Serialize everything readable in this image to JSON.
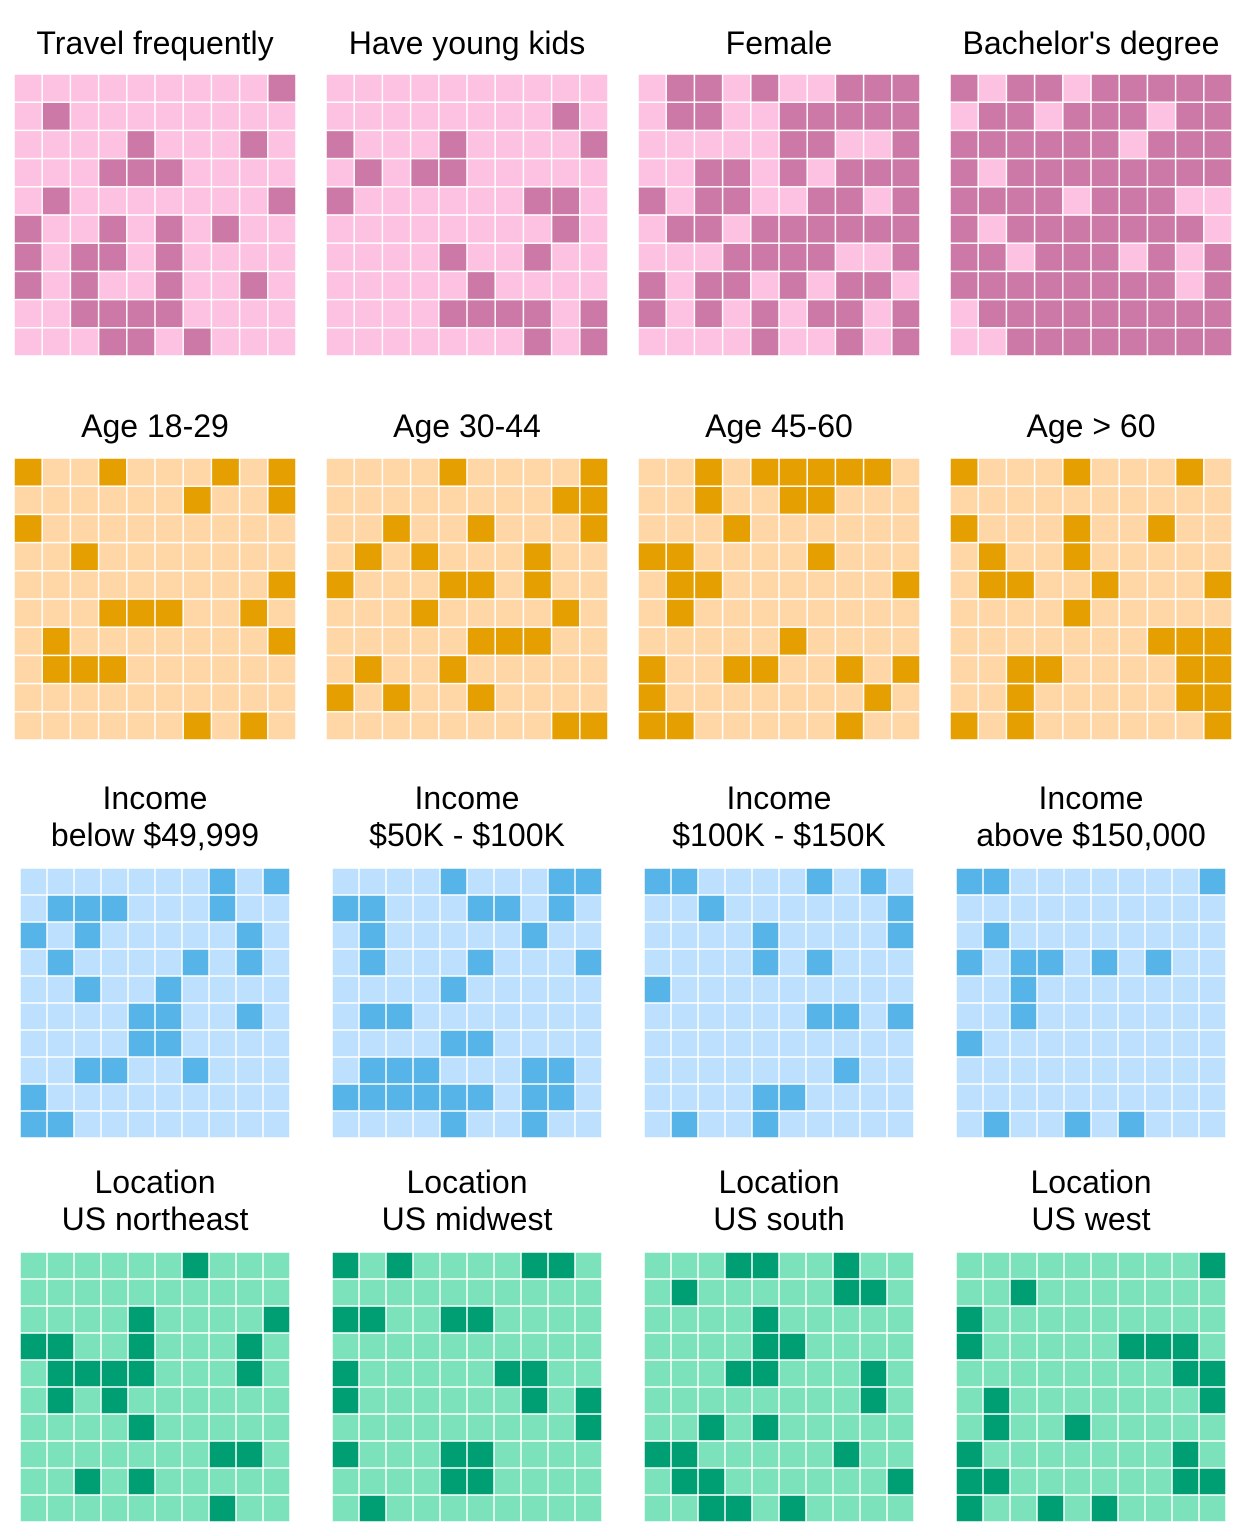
{
  "chart_data": {
    "type": "waffle",
    "grid": "10x10",
    "legend": "none",
    "panels": [
      {
        "title": [
          "Travel frequently"
        ],
        "light_color": "#FDC1E2",
        "dark_color": "#CC79A7",
        "cells": [
          "0000000001",
          "0100000000",
          "0000100010",
          "0001110000",
          "0100000001",
          "1001010100",
          "1011010000",
          "1010010010",
          "0011110000",
          "0001101000"
        ]
      },
      {
        "title": [
          "Have young kids"
        ],
        "light_color": "#FDC1E2",
        "dark_color": "#CC79A7",
        "cells": [
          "0000000000",
          "0000000010",
          "1000100001",
          "0101100000",
          "1000000110",
          "0000000010",
          "0000100100",
          "0000010000",
          "0000111101",
          "0000000101"
        ]
      },
      {
        "title": [
          "Female"
        ],
        "light_color": "#FDC1E2",
        "dark_color": "#CC79A7",
        "cells": [
          "0110100111",
          "0110011111",
          "0000011001",
          "0011010111",
          "1011001101",
          "0110111111",
          "0001111001",
          "1011010110",
          "1010101101",
          "0000100101"
        ]
      },
      {
        "title": [
          "Bachelor's degree"
        ],
        "light_color": "#FDC1E2",
        "dark_color": "#CC79A7",
        "cells": [
          "1011011111",
          "0110111011",
          "1111110111",
          "1011111111",
          "1111011100",
          "1011111110",
          "1101110101",
          "1111111101",
          "0111111111",
          "0011111111"
        ]
      },
      {
        "title": [
          "Age 18-29"
        ],
        "light_color": "#FFD6A6",
        "dark_color": "#E69F00",
        "cells": [
          "1001000101",
          "0000001001",
          "1000000000",
          "0010000000",
          "0000000001",
          "0001110010",
          "0100000001",
          "0111000000",
          "0000000000",
          "0000001010"
        ]
      },
      {
        "title": [
          "Age 30-44"
        ],
        "light_color": "#FFD6A6",
        "dark_color": "#E69F00",
        "cells": [
          "0000100001",
          "0000000011",
          "0010010001",
          "0101000100",
          "1000110100",
          "0001000010",
          "0000011100",
          "0100100000",
          "1010010000",
          "0000000011"
        ]
      },
      {
        "title": [
          "Age 45-60"
        ],
        "light_color": "#FFD6A6",
        "dark_color": "#E69F00",
        "cells": [
          "0010111110",
          "0010011000",
          "0001000000",
          "1100001000",
          "0110000001",
          "0100000000",
          "0000010000",
          "1001100101",
          "1000000010",
          "1100000100"
        ]
      },
      {
        "title": [
          "Age > 60"
        ],
        "light_color": "#FFD6A6",
        "dark_color": "#E69F00",
        "cells": [
          "1000100010",
          "0000000000",
          "1000100100",
          "0100100000",
          "0110010001",
          "0000100000",
          "0000000111",
          "0011000011",
          "0010000011",
          "1010000001"
        ]
      },
      {
        "title": [
          "Income",
          "below $49,999"
        ],
        "light_color": "#BDE0FE",
        "dark_color": "#56B4E9",
        "cells": [
          "0000000101",
          "0111000100",
          "1010000010",
          "0100001010",
          "0010010000",
          "0000110010",
          "0000110000",
          "0011001000",
          "1000000000",
          "1100000000"
        ]
      },
      {
        "title": [
          "Income",
          "$50K - $100K"
        ],
        "light_color": "#BDE0FE",
        "dark_color": "#56B4E9",
        "cells": [
          "0000100011",
          "1100011010",
          "0100000100",
          "0100010001",
          "0000100000",
          "0110000000",
          "0000110000",
          "0111000110",
          "1111110110",
          "0000100100"
        ]
      },
      {
        "title": [
          "Income",
          "$100K - $150K"
        ],
        "light_color": "#BDE0FE",
        "dark_color": "#56B4E9",
        "cells": [
          "1100001010",
          "0010000001",
          "0000100001",
          "0000101000",
          "1000000000",
          "0000001101",
          "0000000000",
          "0000000100",
          "0000110000",
          "0100100000"
        ]
      },
      {
        "title": [
          "Income",
          "above $150,000"
        ],
        "light_color": "#BDE0FE",
        "dark_color": "#56B4E9",
        "cells": [
          "1100000001",
          "0000000000",
          "0100000000",
          "1011010100",
          "0010000000",
          "0010000000",
          "1000000000",
          "0000000000",
          "0000000000",
          "0100101000"
        ]
      },
      {
        "title": [
          "Location",
          "US northeast"
        ],
        "light_color": "#7BE2BB",
        "dark_color": "#009E73",
        "cells": [
          "0000001000",
          "0000000000",
          "0000100001",
          "1100100010",
          "0111100010",
          "0101000000",
          "0000100000",
          "0000000110",
          "0010100000",
          "0000000100"
        ]
      },
      {
        "title": [
          "Location",
          "US midwest"
        ],
        "light_color": "#7BE2BB",
        "dark_color": "#009E73",
        "cells": [
          "1010000110",
          "0000000000",
          "1100110000",
          "0000000000",
          "1000001100",
          "1000000101",
          "0000000001",
          "1000110000",
          "0000110000",
          "0100000000"
        ]
      },
      {
        "title": [
          "Location",
          "US south"
        ],
        "light_color": "#7BE2BB",
        "dark_color": "#009E73",
        "cells": [
          "0001100100",
          "0100000110",
          "0000100000",
          "0000110000",
          "0001100010",
          "0000000010",
          "0010100000",
          "1100000100",
          "0110000001",
          "0011010000"
        ]
      },
      {
        "title": [
          "Location",
          "US west"
        ],
        "light_color": "#7BE2BB",
        "dark_color": "#009E73",
        "cells": [
          "0000000001",
          "0010000000",
          "1000000000",
          "1000001110",
          "0000000011",
          "0100000001",
          "0100100000",
          "1000000010",
          "1100000011",
          "1001010000"
        ]
      }
    ]
  }
}
